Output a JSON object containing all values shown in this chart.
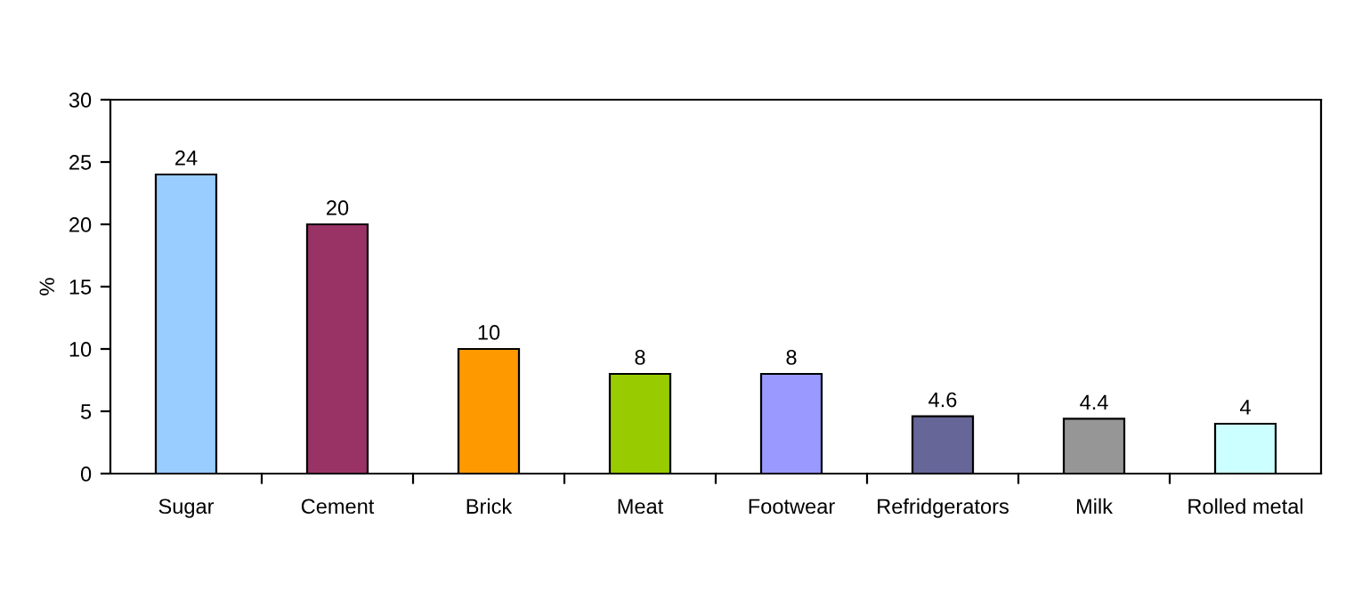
{
  "chart_data": {
    "type": "bar",
    "ylabel": "%",
    "categories": [
      "Sugar",
      "Cement",
      "Brick",
      "Meat",
      "Footwear",
      "Refridgerators",
      "Milk",
      "Rolled metal"
    ],
    "values": [
      24,
      20,
      10,
      8,
      8,
      4.6,
      4.4,
      4
    ],
    "colors": [
      "#99ccff",
      "#993366",
      "#ff9900",
      "#99cc00",
      "#9999ff",
      "#666699",
      "#969696",
      "#ccffff"
    ],
    "ylim": [
      0,
      30
    ],
    "yticks": [
      0,
      5,
      10,
      15,
      20,
      25,
      30
    ],
    "grid": false,
    "legend": false,
    "data_labels": true
  }
}
